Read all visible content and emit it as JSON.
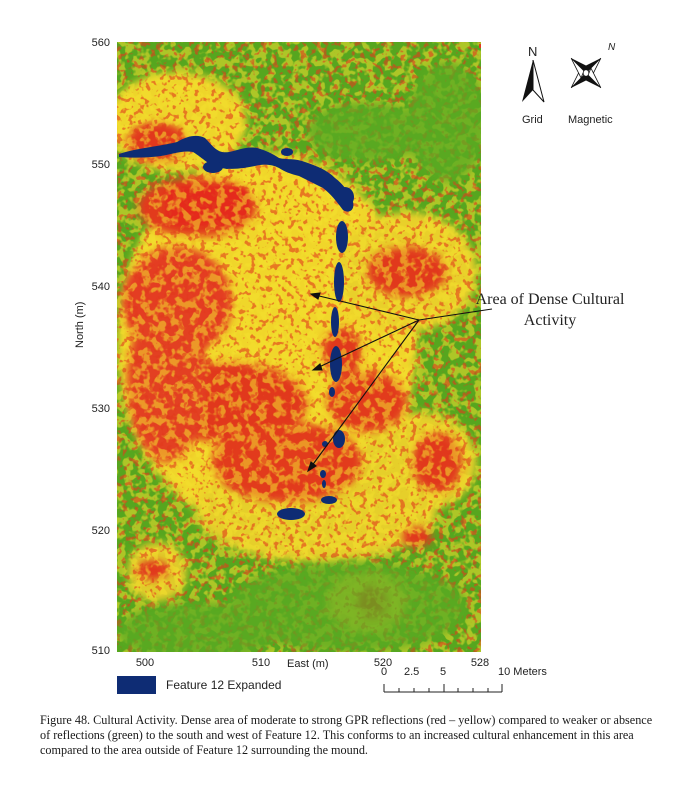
{
  "map": {
    "y_ticks": [
      "560",
      "550",
      "540",
      "530",
      "520",
      "510"
    ],
    "x_ticks": [
      "500",
      "510",
      "520",
      "528"
    ],
    "x_axis_title": "East (m)",
    "y_axis_title": "North (m)",
    "annotation": "Area of Dense Cultural Activity",
    "colors": {
      "strong_reflection": "#e4361e",
      "moderate_reflection": "#f3de2b",
      "weak_reflection": "#5aaa22",
      "feature": "#0e2c74"
    }
  },
  "compass": {
    "grid_letter": "N",
    "magnetic_letter": "N",
    "grid_label": "Grid",
    "magnetic_label": "Magnetic"
  },
  "legend": {
    "label": "Feature 12 Expanded",
    "color": "#0e2c74"
  },
  "scale_bar": {
    "ticks": [
      "0",
      "2.5",
      "5",
      "10 Meters"
    ]
  },
  "caption": {
    "text": "Figure 48. Cultural Activity. Dense area of moderate to strong GPR reflections (red – yellow) compared to weaker or absence of reflections (green) to the south and west of Feature 12. This conforms to an increased cultural enhancement in this area compared to the area outside of Feature 12 surrounding the mound."
  }
}
